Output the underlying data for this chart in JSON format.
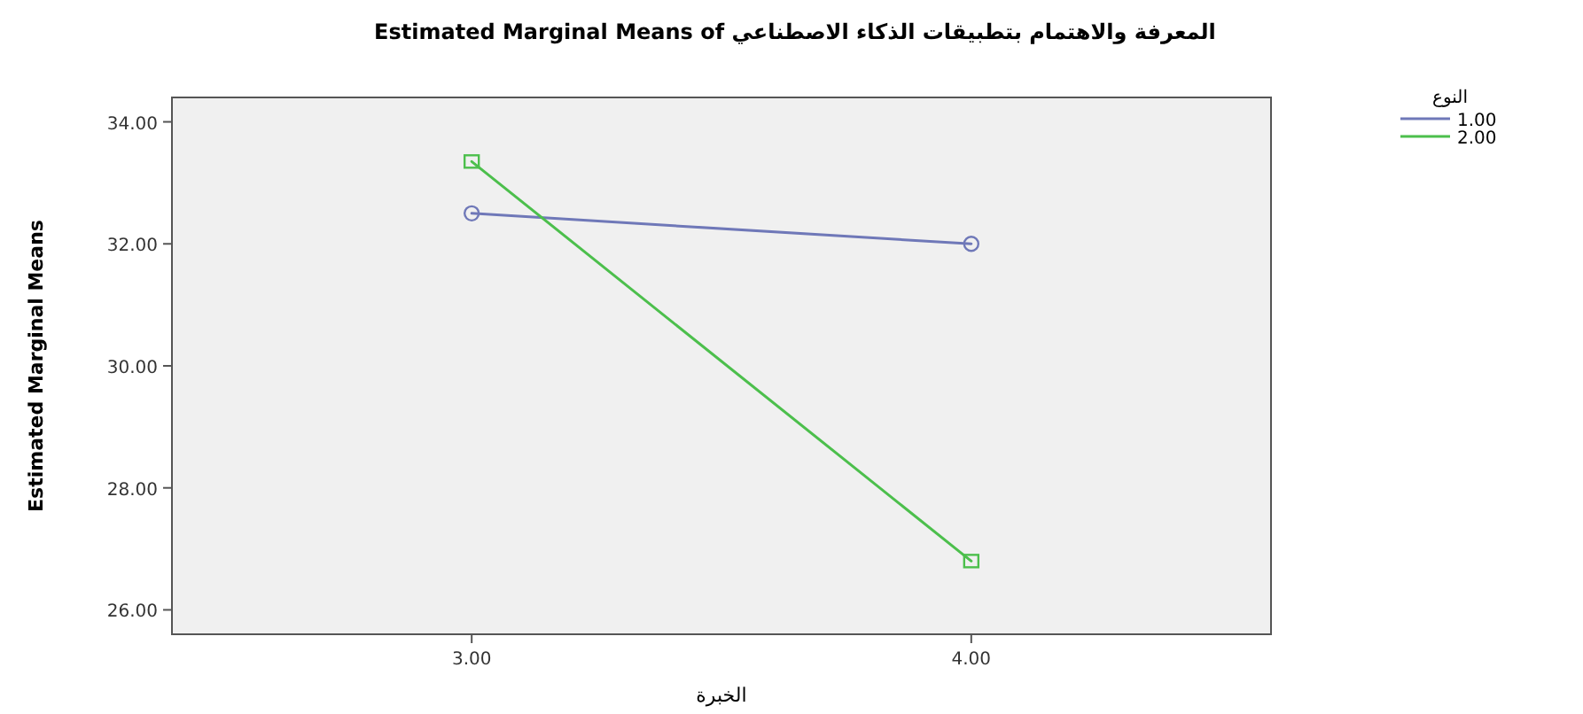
{
  "chart_data": {
    "type": "line",
    "title": "Estimated Marginal Means of المعرفة والاهتمام بتطبيقات الذكاء الاصطناعي",
    "xlabel": "الخبرة",
    "ylabel": "Estimated Marginal Means",
    "legend_title": "النوع",
    "categories": [
      "3.00",
      "4.00"
    ],
    "series": [
      {
        "name": "1.00",
        "color": "#6f78b8",
        "values": [
          32.5,
          32.0
        ],
        "marker": "circle"
      },
      {
        "name": "2.00",
        "color": "#4cbf4c",
        "values": [
          33.35,
          26.8
        ],
        "marker": "square"
      }
    ],
    "ylim": [
      25.6,
      34.4
    ],
    "yticks": [
      {
        "value": 26,
        "label": "26.00"
      },
      {
        "value": 28,
        "label": "28.00"
      },
      {
        "value": 30,
        "label": "30.00"
      },
      {
        "value": 32,
        "label": "32.00"
      },
      {
        "value": 34,
        "label": "34.00"
      }
    ],
    "grid": false,
    "legend": "top right",
    "line_style": "solid"
  }
}
